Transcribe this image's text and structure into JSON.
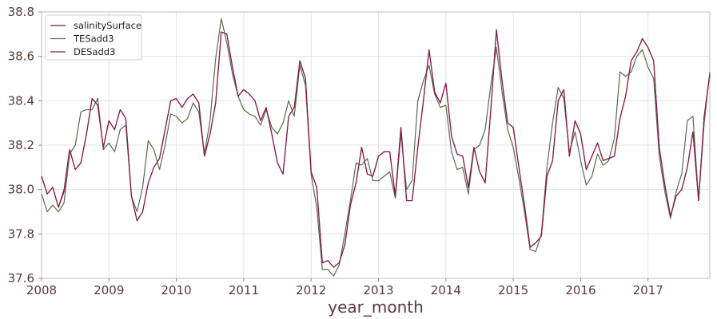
{
  "chart_data": {
    "type": "line",
    "xlabel": "year_month",
    "ylabel": "",
    "x_start": "2008-01",
    "x_ticks": [
      "2008",
      "2009",
      "2010",
      "2011",
      "2012",
      "2013",
      "2014",
      "2015",
      "2016",
      "2017"
    ],
    "xlim": [
      "2008-01",
      "2017-12"
    ],
    "ylim": [
      37.6,
      38.8
    ],
    "y_ticks": [
      "37.6",
      "37.8",
      "38.0",
      "38.2",
      "38.4",
      "38.6",
      "38.8"
    ],
    "grid": true,
    "legend_position": "top-left",
    "series": [
      {
        "name": "salinitySurface",
        "color": "#7b1f3a",
        "values": [
          38.06,
          37.98,
          38.01,
          37.92,
          37.99,
          38.18,
          38.09,
          38.12,
          38.25,
          38.41,
          38.38,
          38.19,
          38.31,
          38.27,
          38.36,
          38.32,
          37.97,
          37.86,
          37.9,
          38.03,
          38.1,
          38.14,
          38.27,
          38.4,
          38.41,
          38.37,
          38.41,
          38.43,
          38.39,
          38.15,
          38.25,
          38.39,
          38.71,
          38.7,
          38.55,
          38.42,
          38.45,
          38.43,
          38.4,
          38.31,
          38.37,
          38.25,
          38.12,
          38.07,
          38.33,
          38.37,
          38.58,
          38.5,
          38.08,
          38.01,
          37.67,
          37.68,
          37.65,
          37.67,
          37.75,
          37.93,
          38.03,
          38.19,
          38.07,
          38.06,
          38.15,
          38.17,
          38.17,
          37.97,
          38.28,
          37.95,
          37.95,
          38.19,
          38.4,
          38.63,
          38.44,
          38.39,
          38.48,
          38.24,
          38.16,
          38.15,
          38.01,
          38.19,
          38.08,
          38.03,
          38.36,
          38.72,
          38.49,
          38.3,
          38.28,
          38.1,
          37.93,
          37.74,
          37.76,
          37.79,
          38.06,
          38.13,
          38.4,
          38.45,
          38.15,
          38.31,
          38.25,
          38.09,
          38.15,
          38.21,
          38.13,
          38.14,
          38.15,
          38.32,
          38.42,
          38.58,
          38.62,
          38.68,
          38.64,
          38.58,
          38.19,
          38.02,
          37.88,
          37.97,
          38.0,
          38.1,
          38.26,
          37.95,
          38.33,
          38.52
        ]
      },
      {
        "name": "TESadd3",
        "color": "#5a6b4a",
        "values": [
          37.98,
          37.9,
          37.93,
          37.9,
          37.94,
          38.16,
          38.2,
          38.35,
          38.36,
          38.36,
          38.41,
          38.18,
          38.21,
          38.17,
          38.27,
          38.29,
          37.97,
          37.9,
          38.01,
          38.22,
          38.18,
          38.09,
          38.2,
          38.34,
          38.33,
          38.3,
          38.32,
          38.39,
          38.35,
          38.16,
          38.31,
          38.59,
          38.77,
          38.66,
          38.52,
          38.42,
          38.36,
          38.34,
          38.33,
          38.29,
          38.36,
          38.28,
          38.25,
          38.3,
          38.4,
          38.33,
          38.56,
          38.47,
          38.07,
          37.92,
          37.64,
          37.64,
          37.61,
          37.66,
          37.8,
          37.95,
          38.12,
          38.11,
          38.14,
          38.04,
          38.04,
          38.06,
          38.08,
          37.96,
          38.25,
          38.0,
          38.04,
          38.4,
          38.49,
          38.56,
          38.43,
          38.37,
          38.38,
          38.17,
          38.09,
          38.1,
          37.98,
          38.18,
          38.2,
          38.27,
          38.47,
          38.64,
          38.44,
          38.27,
          38.19,
          38.05,
          37.9,
          37.73,
          37.72,
          37.8,
          38.1,
          38.3,
          38.46,
          38.41,
          38.17,
          38.26,
          38.13,
          38.02,
          38.06,
          38.16,
          38.11,
          38.13,
          38.23,
          38.53,
          38.51,
          38.53,
          38.6,
          38.63,
          38.55,
          38.5,
          38.15,
          37.99,
          37.87,
          37.99,
          38.07,
          38.31,
          38.33,
          37.95,
          38.3,
          38.53
        ]
      },
      {
        "name": "DESadd3",
        "color": "#8c1a4b",
        "values": [
          38.06,
          37.98,
          38.01,
          37.92,
          38.0,
          38.18,
          38.09,
          38.12,
          38.25,
          38.41,
          38.38,
          38.19,
          38.31,
          38.27,
          38.36,
          38.32,
          37.97,
          37.86,
          37.9,
          38.03,
          38.1,
          38.14,
          38.27,
          38.4,
          38.41,
          38.37,
          38.41,
          38.43,
          38.39,
          38.15,
          38.25,
          38.39,
          38.71,
          38.7,
          38.55,
          38.42,
          38.45,
          38.43,
          38.4,
          38.31,
          38.37,
          38.25,
          38.12,
          38.07,
          38.33,
          38.37,
          38.58,
          38.5,
          38.08,
          38.01,
          37.67,
          37.68,
          37.65,
          37.67,
          37.75,
          37.93,
          38.03,
          38.19,
          38.07,
          38.06,
          38.15,
          38.17,
          38.17,
          37.97,
          38.28,
          37.95,
          37.95,
          38.19,
          38.4,
          38.63,
          38.44,
          38.39,
          38.48,
          38.24,
          38.16,
          38.15,
          38.01,
          38.19,
          38.08,
          38.03,
          38.36,
          38.72,
          38.49,
          38.3,
          38.28,
          38.1,
          37.93,
          37.74,
          37.76,
          37.79,
          38.06,
          38.13,
          38.4,
          38.45,
          38.15,
          38.31,
          38.25,
          38.09,
          38.15,
          38.21,
          38.13,
          38.14,
          38.15,
          38.32,
          38.42,
          38.58,
          38.62,
          38.68,
          38.64,
          38.58,
          38.19,
          38.02,
          37.88,
          37.97,
          38.0,
          38.1,
          38.26,
          37.95,
          38.33,
          38.52
        ]
      }
    ]
  }
}
